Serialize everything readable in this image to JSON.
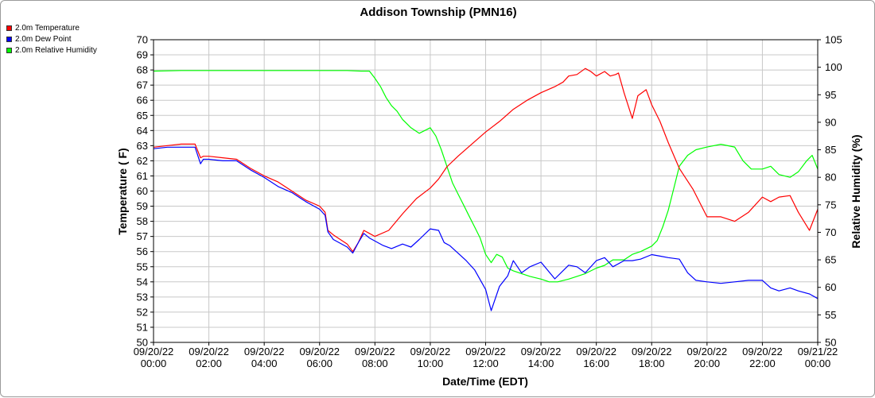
{
  "chart_data": {
    "type": "line",
    "title": "Addison Township (PMN16)",
    "xlabel": "Date/Time (EDT)",
    "ylabel": "Temperature ( F)",
    "y2label": "Relative Humidity (%)",
    "ylim": [
      50,
      70
    ],
    "y2lim": [
      50,
      105
    ],
    "xlim_hours": [
      0,
      24
    ],
    "grid": true,
    "legend_position": "top-left",
    "x_ticks": [
      {
        "date": "09/20/22",
        "time": "00:00"
      },
      {
        "date": "09/20/22",
        "time": "02:00"
      },
      {
        "date": "09/20/22",
        "time": "04:00"
      },
      {
        "date": "09/20/22",
        "time": "06:00"
      },
      {
        "date": "09/20/22",
        "time": "08:00"
      },
      {
        "date": "09/20/22",
        "time": "10:00"
      },
      {
        "date": "09/20/22",
        "time": "12:00"
      },
      {
        "date": "09/20/22",
        "time": "14:00"
      },
      {
        "date": "09/20/22",
        "time": "16:00"
      },
      {
        "date": "09/20/22",
        "time": "18:00"
      },
      {
        "date": "09/20/22",
        "time": "20:00"
      },
      {
        "date": "09/20/22",
        "time": "22:00"
      },
      {
        "date": "09/21/22",
        "time": "00:00"
      }
    ],
    "y_ticks": [
      50,
      51,
      52,
      53,
      54,
      55,
      56,
      57,
      58,
      59,
      60,
      61,
      62,
      63,
      64,
      65,
      66,
      67,
      68,
      69,
      70
    ],
    "y2_ticks": [
      50,
      55,
      60,
      65,
      70,
      75,
      80,
      85,
      90,
      95,
      100,
      105
    ],
    "series": [
      {
        "name": "2.0m Temperature",
        "color": "#ff0000",
        "axis": "left",
        "x": [
          0,
          0.5,
          1,
          1.3,
          1.5,
          1.7,
          1.8,
          2,
          2.5,
          3,
          3.5,
          4,
          4.5,
          5,
          5.5,
          6,
          6.2,
          6.3,
          6.5,
          7,
          7.2,
          7.4,
          7.6,
          7.8,
          8,
          8.5,
          9,
          9.5,
          10,
          10.3,
          10.6,
          11,
          11.5,
          12,
          12.5,
          13,
          13.5,
          14,
          14.5,
          14.8,
          15,
          15.3,
          15.6,
          15.8,
          16,
          16.3,
          16.5,
          16.7,
          16.8,
          17,
          17.3,
          17.5,
          17.8,
          18,
          18.3,
          18.6,
          19,
          19.5,
          20,
          20.5,
          21,
          21.5,
          22,
          22.3,
          22.6,
          23,
          23.3,
          23.7,
          24
        ],
        "values": [
          62.9,
          63.0,
          63.1,
          63.1,
          63.1,
          62.2,
          62.3,
          62.3,
          62.2,
          62.1,
          61.5,
          61.0,
          60.6,
          60.0,
          59.4,
          59.0,
          58.6,
          57.4,
          57.1,
          56.5,
          56.0,
          56.6,
          57.4,
          57.2,
          57.0,
          57.4,
          58.5,
          59.5,
          60.2,
          60.8,
          61.6,
          62.3,
          63.1,
          63.9,
          64.6,
          65.4,
          66.0,
          66.5,
          66.9,
          67.2,
          67.6,
          67.7,
          68.1,
          67.9,
          67.6,
          67.9,
          67.6,
          67.7,
          67.8,
          66.5,
          64.8,
          66.3,
          66.7,
          65.7,
          64.6,
          63.2,
          61.5,
          60.1,
          58.3,
          58.3,
          58.0,
          58.6,
          59.6,
          59.3,
          59.6,
          59.7,
          58.6,
          57.4,
          58.8
        ]
      },
      {
        "name": "2.0m Dew Point",
        "color": "#0000ff",
        "axis": "left",
        "x": [
          0,
          0.5,
          1,
          1.3,
          1.5,
          1.7,
          1.8,
          2,
          2.5,
          3,
          3.5,
          4,
          4.5,
          5,
          5.5,
          6,
          6.2,
          6.3,
          6.5,
          7,
          7.2,
          7.4,
          7.6,
          7.8,
          8,
          8.3,
          8.6,
          9,
          9.3,
          9.6,
          10,
          10.3,
          10.5,
          10.7,
          11,
          11.3,
          11.6,
          12,
          12.2,
          12.5,
          12.8,
          13,
          13.3,
          13.6,
          14,
          14.5,
          15,
          15.3,
          15.6,
          16,
          16.3,
          16.6,
          17,
          17.3,
          17.6,
          18,
          18.3,
          18.6,
          19,
          19.3,
          19.6,
          20,
          20.5,
          21,
          21.5,
          22,
          22.3,
          22.6,
          23,
          23.3,
          23.7,
          24
        ],
        "values": [
          62.8,
          62.9,
          62.9,
          62.9,
          62.9,
          61.8,
          62.1,
          62.1,
          62.0,
          62.0,
          61.4,
          60.9,
          60.3,
          59.9,
          59.3,
          58.8,
          58.4,
          57.3,
          56.8,
          56.3,
          55.9,
          56.6,
          57.2,
          56.9,
          56.7,
          56.4,
          56.2,
          56.5,
          56.3,
          56.8,
          57.5,
          57.4,
          56.6,
          56.4,
          55.9,
          55.4,
          54.8,
          53.5,
          52.1,
          53.7,
          54.4,
          55.4,
          54.6,
          55.0,
          55.3,
          54.2,
          55.1,
          55.0,
          54.6,
          55.4,
          55.6,
          55.0,
          55.4,
          55.4,
          55.5,
          55.8,
          55.7,
          55.6,
          55.5,
          54.6,
          54.1,
          54.0,
          53.9,
          54.0,
          54.1,
          54.1,
          53.6,
          53.4,
          53.6,
          53.4,
          53.2,
          52.9
        ]
      },
      {
        "name": "2.0m Relative Humidity",
        "color": "#00ff00",
        "axis": "right",
        "x": [
          0,
          1,
          2,
          3,
          4,
          5,
          6,
          7,
          7.5,
          7.8,
          8,
          8.2,
          8.4,
          8.6,
          8.8,
          9,
          9.3,
          9.6,
          9.8,
          10,
          10.2,
          10.4,
          10.6,
          10.8,
          11,
          11.2,
          11.4,
          11.6,
          11.8,
          12,
          12.2,
          12.4,
          12.6,
          12.8,
          13,
          13.3,
          13.6,
          14,
          14.3,
          14.6,
          15,
          15.3,
          15.6,
          16,
          16.3,
          16.6,
          17,
          17.3,
          17.6,
          18,
          18.2,
          18.4,
          18.6,
          18.8,
          19,
          19.3,
          19.6,
          20,
          20.5,
          21,
          21.3,
          21.6,
          22,
          22.3,
          22.6,
          23,
          23.3,
          23.6,
          23.8,
          24
        ],
        "values": [
          99.3,
          99.4,
          99.4,
          99.4,
          99.4,
          99.4,
          99.4,
          99.4,
          99.3,
          99.3,
          98.0,
          96.5,
          94.5,
          93.0,
          92.0,
          90.5,
          89.0,
          88.0,
          88.5,
          89.0,
          87.5,
          85.0,
          82.0,
          79.0,
          77.0,
          75.0,
          73.0,
          71.0,
          69.0,
          66.0,
          64.5,
          66.0,
          65.5,
          63.5,
          63.0,
          62.5,
          62.0,
          61.5,
          61.0,
          61.0,
          61.5,
          62.0,
          62.5,
          63.5,
          64.0,
          65.0,
          65.0,
          66.0,
          66.5,
          67.5,
          68.5,
          71.0,
          74.0,
          78.0,
          82.0,
          84.0,
          85.0,
          85.5,
          86.0,
          85.5,
          83.0,
          81.5,
          81.5,
          82.0,
          80.5,
          80.0,
          81.0,
          83.0,
          84.0,
          81.5
        ]
      }
    ]
  }
}
